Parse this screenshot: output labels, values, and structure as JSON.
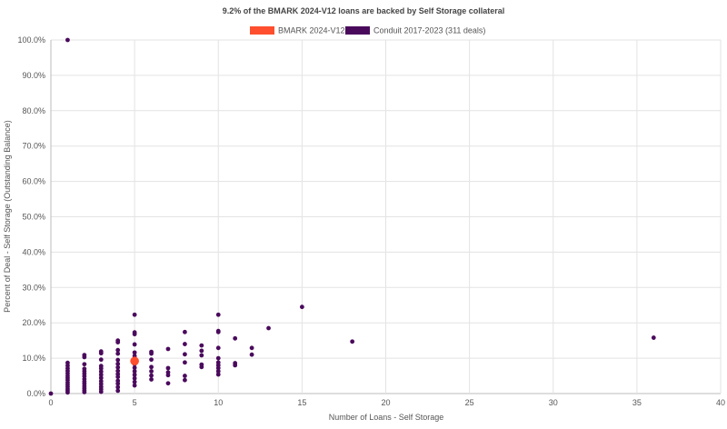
{
  "chart_data": {
    "type": "scatter",
    "title": "9.2% of the BMARK 2024-V12 loans are backed by Self Storage collateral",
    "xlabel": "Number of Loans - Self Storage",
    "ylabel": "Percent of Deal - Self Storage (Outstanding Balance)",
    "xlim": [
      0,
      40
    ],
    "ylim": [
      0,
      100
    ],
    "x_ticks": [
      "0",
      "5",
      "10",
      "15",
      "20",
      "25",
      "30",
      "35",
      "40"
    ],
    "y_ticks": [
      "0.0%",
      "10.0%",
      "20.0%",
      "30.0%",
      "40.0%",
      "50.0%",
      "60.0%",
      "70.0%",
      "80.0%",
      "90.0%",
      "100.0%"
    ],
    "grid": true,
    "legend_position": "top-center",
    "series": [
      {
        "name": "BMARK 2024-V12",
        "color": "#ff4f2e",
        "points": [
          [
            5,
            9.2
          ]
        ]
      },
      {
        "name": "Conduit 2017-2023 (311 deals)",
        "color": "#4a0a5c",
        "points": [
          [
            0,
            0
          ],
          [
            1,
            100
          ],
          [
            1,
            0.3
          ],
          [
            1,
            0.8
          ],
          [
            1,
            1.3
          ],
          [
            1,
            1.9
          ],
          [
            1,
            2.5
          ],
          [
            1,
            3.1
          ],
          [
            1,
            3.8
          ],
          [
            1,
            4.4
          ],
          [
            1,
            5.0
          ],
          [
            1,
            5.7
          ],
          [
            1,
            6.4
          ],
          [
            1,
            7.1
          ],
          [
            1,
            7.9
          ],
          [
            1,
            8.7
          ],
          [
            2,
            0.4
          ],
          [
            2,
            0.9
          ],
          [
            2,
            1.5
          ],
          [
            2,
            2.1
          ],
          [
            2,
            2.8
          ],
          [
            2,
            3.4
          ],
          [
            2,
            4.1
          ],
          [
            2,
            4.9
          ],
          [
            2,
            5.6
          ],
          [
            2,
            6.3
          ],
          [
            2,
            7.0
          ],
          [
            2,
            8.3
          ],
          [
            2,
            10.3
          ],
          [
            2,
            10.9
          ],
          [
            3,
            0.5
          ],
          [
            3,
            1.2
          ],
          [
            3,
            1.9
          ],
          [
            3,
            2.7
          ],
          [
            3,
            3.5
          ],
          [
            3,
            4.4
          ],
          [
            3,
            5.3
          ],
          [
            3,
            6.2
          ],
          [
            3,
            7.1
          ],
          [
            3,
            7.8
          ],
          [
            3,
            9.6
          ],
          [
            3,
            11.4
          ],
          [
            3,
            11.9
          ],
          [
            4,
            0.8
          ],
          [
            4,
            1.8
          ],
          [
            4,
            2.8
          ],
          [
            4,
            3.6
          ],
          [
            4,
            4.7
          ],
          [
            4,
            5.5
          ],
          [
            4,
            6.4
          ],
          [
            4,
            7.4
          ],
          [
            4,
            8.4
          ],
          [
            4,
            9.5
          ],
          [
            4,
            11.3
          ],
          [
            4,
            12.3
          ],
          [
            4,
            14.5
          ],
          [
            4,
            15.0
          ],
          [
            5,
            2.3
          ],
          [
            5,
            3.3
          ],
          [
            5,
            4.3
          ],
          [
            5,
            5.3
          ],
          [
            5,
            6.3
          ],
          [
            5,
            7.3
          ],
          [
            5,
            8.3
          ],
          [
            5,
            10.6
          ],
          [
            5,
            11.6
          ],
          [
            5,
            13.9
          ],
          [
            5,
            16.8
          ],
          [
            5,
            17.3
          ],
          [
            5,
            22.3
          ],
          [
            6,
            4.0
          ],
          [
            6,
            5.1
          ],
          [
            6,
            6.3
          ],
          [
            6,
            7.5
          ],
          [
            6,
            9.6
          ],
          [
            6,
            11.3
          ],
          [
            6,
            11.8
          ],
          [
            7,
            2.9
          ],
          [
            7,
            5.2
          ],
          [
            7,
            6.0
          ],
          [
            7,
            7.2
          ],
          [
            7,
            12.6
          ],
          [
            8,
            3.8
          ],
          [
            8,
            5.0
          ],
          [
            8,
            8.8
          ],
          [
            8,
            11.1
          ],
          [
            8,
            14.0
          ],
          [
            8,
            17.4
          ],
          [
            9,
            7.5
          ],
          [
            9,
            8.2
          ],
          [
            9,
            10.8
          ],
          [
            9,
            12.1
          ],
          [
            9,
            13.6
          ],
          [
            10,
            5.4
          ],
          [
            10,
            6.3
          ],
          [
            10,
            7.2
          ],
          [
            10,
            8.0
          ],
          [
            10,
            8.8
          ],
          [
            10,
            10.0
          ],
          [
            10,
            12.9
          ],
          [
            10,
            17.4
          ],
          [
            10,
            17.7
          ],
          [
            10,
            22.3
          ],
          [
            11,
            8.0
          ],
          [
            11,
            8.6
          ],
          [
            11,
            15.6
          ],
          [
            12,
            11.0
          ],
          [
            12,
            12.9
          ],
          [
            13,
            18.5
          ],
          [
            15,
            24.5
          ],
          [
            18,
            14.7
          ],
          [
            36,
            15.8
          ]
        ]
      }
    ]
  }
}
